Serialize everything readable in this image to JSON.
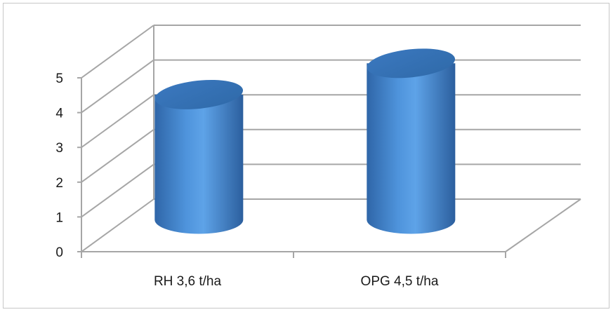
{
  "chart_data": {
    "type": "bar",
    "style": "3d-cylinder",
    "categories": [
      "RH 3,6 t/ha",
      "OPG 4,5 t/ha"
    ],
    "values": [
      3.6,
      4.5
    ],
    "ylim": [
      0,
      5
    ],
    "yticks": [
      "0",
      "1",
      "2",
      "3",
      "4",
      "5"
    ],
    "title": "",
    "xlabel": "",
    "ylabel": "",
    "grid": true,
    "colors": {
      "bar": "#4f8fd6",
      "bar_dark": "#2f6db3",
      "bar_top": "#3f7fc6",
      "grid": "#a6a6a6",
      "text": "#1a1a1a"
    }
  }
}
